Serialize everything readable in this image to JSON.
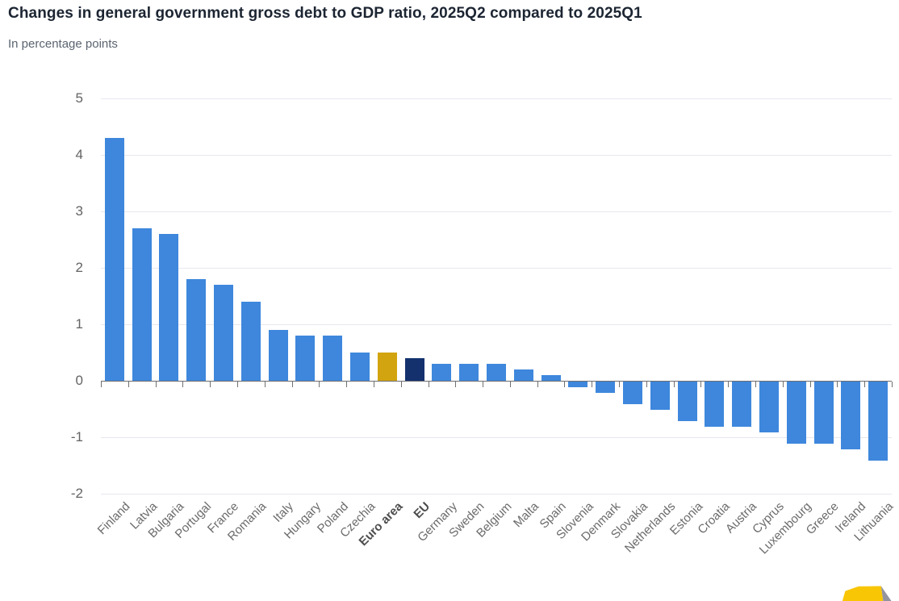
{
  "chart_data": {
    "type": "bar",
    "title": "Changes in general government gross debt to GDP ratio, 2025Q2 compared to 2025Q1",
    "subtitle": "In percentage points",
    "categories": [
      "Finland",
      "Latvia",
      "Bulgaria",
      "Portugal",
      "France",
      "Romania",
      "Italy",
      "Hungary",
      "Poland",
      "Czechia",
      "Euro area",
      "EU",
      "Germany",
      "Sweden",
      "Belgium",
      "Malta",
      "Spain",
      "Slovenia",
      "Denmark",
      "Slovakia",
      "Netherlands",
      "Estonia",
      "Croatia",
      "Austria",
      "Cyprus",
      "Luxembourg",
      "Greece",
      "Ireland",
      "Lithuania"
    ],
    "values": [
      4.3,
      2.7,
      2.6,
      1.8,
      1.7,
      1.4,
      0.9,
      0.8,
      0.8,
      0.5,
      0.5,
      0.4,
      0.3,
      0.3,
      0.3,
      0.2,
      0.1,
      -0.1,
      -0.2,
      -0.4,
      -0.5,
      -0.7,
      -0.8,
      -0.8,
      -0.9,
      -1.1,
      -1.1,
      -1.2,
      -1.4
    ],
    "bold_categories": [
      "Euro area",
      "EU"
    ],
    "yticks": [
      5,
      4,
      3,
      2,
      1,
      0,
      -1,
      -2
    ],
    "ylim": [
      -2,
      5
    ],
    "grid": true,
    "legend": "none",
    "colors": {
      "bar_default": "#3E87DC",
      "bar_euro_area": "#D2A40F",
      "bar_eu": "#14316E",
      "gridline": "#e7e7f0",
      "zero_axis": "#6e6e72",
      "title_text": "#1c2532",
      "subtitle_text": "#5b6470",
      "axis_label_text": "#636363",
      "category_label_text": "#6b6b6b",
      "logo_yellow": "#F9C606",
      "logo_gray": "#9494A0"
    },
    "special_color_map": {
      "Euro area": "bar_euro_area",
      "EU": "bar_eu"
    }
  }
}
